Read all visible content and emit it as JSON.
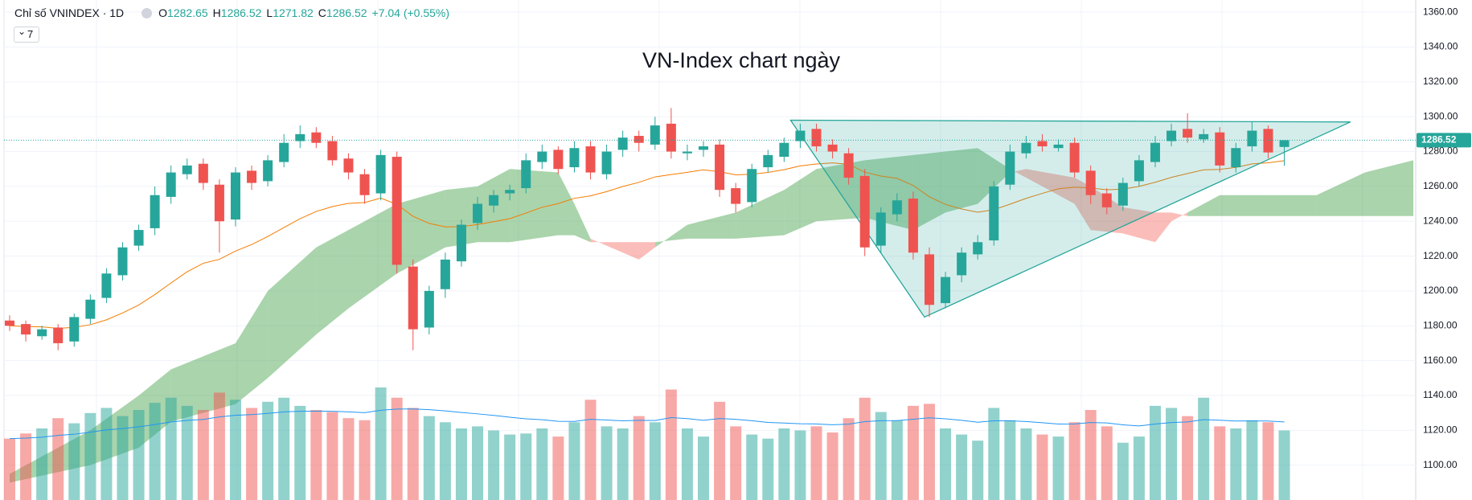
{
  "header": {
    "symbol": "Chỉ số VNINDEX · 1D",
    "menu": "7",
    "open_label": "O",
    "open": 1282.65,
    "high_label": "H",
    "high": 1286.52,
    "low_label": "L",
    "low": 1271.82,
    "close_label": "C",
    "close": 1286.52,
    "change": "+7.04 (+0.55%)"
  },
  "chart_data": {
    "type": "candlestick",
    "title": "VN-Index chart ngày",
    "up_color": "#26a69a",
    "down_color": "#ef5350",
    "open": [
      1183,
      1181,
      1174,
      1179,
      1171,
      1184,
      1196,
      1209,
      1226,
      1236,
      1254,
      1267,
      1273,
      1261,
      1241,
      1269,
      1263,
      1274,
      1286,
      1291,
      1286,
      1276,
      1267,
      1256,
      1277,
      1214,
      1179,
      1201,
      1217,
      1239,
      1249,
      1256,
      1259,
      1274,
      1281,
      1271,
      1283,
      1267,
      1281,
      1289,
      1284,
      1296,
      1279,
      1281,
      1284,
      1259,
      1251,
      1271,
      1277,
      1286,
      1293,
      1284,
      1279,
      1266,
      1226,
      1244,
      1253,
      1221,
      1193,
      1209,
      1221,
      1229,
      1261,
      1279,
      1286,
      1282,
      1285,
      1269,
      1256,
      1249,
      1263,
      1274,
      1286,
      1293,
      1287,
      1291,
      1271,
      1283,
      1293,
      1282.65
    ],
    "high": [
      1186,
      1183,
      1180,
      1181,
      1187,
      1198,
      1213,
      1228,
      1238,
      1260,
      1272,
      1276,
      1276,
      1264,
      1271,
      1272,
      1278,
      1290,
      1295,
      1294,
      1289,
      1279,
      1270,
      1281,
      1280,
      1218,
      1203,
      1222,
      1241,
      1254,
      1258,
      1261,
      1279,
      1284,
      1283,
      1286,
      1286,
      1284,
      1292,
      1292,
      1300,
      1305,
      1284,
      1286,
      1287,
      1262,
      1273,
      1281,
      1288,
      1296,
      1296,
      1287,
      1282,
      1270,
      1248,
      1256,
      1257,
      1225,
      1211,
      1225,
      1232,
      1263,
      1284,
      1289,
      1290,
      1287,
      1288,
      1272,
      1259,
      1265,
      1278,
      1289,
      1296,
      1302,
      1293,
      1294,
      1285,
      1297,
      1295,
      1286.52
    ],
    "low": [
      1177,
      1171,
      1172,
      1166,
      1168,
      1181,
      1193,
      1206,
      1223,
      1232,
      1250,
      1264,
      1258,
      1222,
      1237,
      1258,
      1260,
      1271,
      1282,
      1282,
      1272,
      1264,
      1250,
      1252,
      1210,
      1166,
      1175,
      1196,
      1214,
      1235,
      1245,
      1252,
      1256,
      1270,
      1267,
      1268,
      1264,
      1264,
      1277,
      1280,
      1281,
      1276,
      1275,
      1277,
      1254,
      1245,
      1248,
      1268,
      1274,
      1282,
      1280,
      1276,
      1261,
      1220,
      1222,
      1240,
      1218,
      1185,
      1190,
      1205,
      1218,
      1226,
      1258,
      1276,
      1280,
      1280,
      1265,
      1250,
      1244,
      1246,
      1260,
      1271,
      1283,
      1285,
      1285,
      1268,
      1268,
      1280,
      1276,
      1271.82
    ],
    "close": [
      1180,
      1175,
      1178,
      1170,
      1185,
      1195,
      1210,
      1225,
      1235,
      1255,
      1268,
      1272,
      1262,
      1240,
      1268,
      1262,
      1275,
      1285,
      1290,
      1285,
      1275,
      1268,
      1255,
      1278,
      1215,
      1178,
      1200,
      1218,
      1238,
      1250,
      1255,
      1258,
      1275,
      1280,
      1270,
      1282,
      1268,
      1280,
      1288,
      1285,
      1295,
      1280,
      1280,
      1283,
      1258,
      1250,
      1270,
      1278,
      1285,
      1292,
      1283,
      1280,
      1265,
      1225,
      1245,
      1252,
      1222,
      1192,
      1208,
      1222,
      1228,
      1260,
      1280,
      1285,
      1283,
      1284,
      1268,
      1255,
      1248,
      1262,
      1275,
      1285,
      1292,
      1288,
      1290,
      1272,
      1282,
      1292,
      1279.48,
      1286.52
    ],
    "volume": [
      600,
      650,
      700,
      800,
      750,
      850,
      900,
      820,
      880,
      950,
      1000,
      920,
      880,
      1050,
      980,
      900,
      960,
      1000,
      920,
      880,
      860,
      800,
      780,
      1100,
      1000,
      900,
      820,
      760,
      700,
      720,
      680,
      640,
      650,
      700,
      620,
      760,
      980,
      720,
      700,
      820,
      760,
      1080,
      700,
      620,
      960,
      720,
      640,
      600,
      700,
      680,
      720,
      660,
      800,
      1000,
      860,
      780,
      920,
      940,
      700,
      640,
      580,
      900,
      780,
      700,
      640,
      620,
      760,
      880,
      720,
      560,
      620,
      920,
      900,
      820,
      1000,
      720,
      700,
      780,
      760,
      680
    ],
    "cloud": {
      "x": [
        0,
        5,
        8,
        10,
        14,
        16,
        19,
        21,
        24,
        27,
        29,
        31,
        34,
        35,
        36,
        38,
        39,
        40,
        42,
        45,
        48,
        50,
        53,
        56,
        58,
        60,
        62,
        63,
        66,
        67,
        69,
        71,
        72,
        73,
        75,
        78,
        81,
        84,
        87
      ],
      "span_a": [
        1095,
        1120,
        1140,
        1155,
        1170,
        1200,
        1225,
        1235,
        1250,
        1258,
        1260,
        1270,
        1268,
        1250,
        1230,
        1222,
        1218,
        1225,
        1238,
        1245,
        1258,
        1270,
        1275,
        1278,
        1280,
        1282,
        1270,
        1265,
        1250,
        1235,
        1233,
        1228,
        1240,
        1245,
        1255,
        1255,
        1255,
        1268,
        1275
      ],
      "span_b": [
        1090,
        1100,
        1110,
        1125,
        1135,
        1150,
        1175,
        1190,
        1210,
        1225,
        1228,
        1228,
        1232,
        1232,
        1228,
        1228,
        1228,
        1228,
        1230,
        1230,
        1232,
        1240,
        1242,
        1235,
        1245,
        1250,
        1268,
        1270,
        1265,
        1260,
        1248,
        1245,
        1245,
        1243,
        1243,
        1243,
        1243,
        1243,
        1243
      ]
    },
    "triangle": {
      "x": [
        48.4,
        56.7,
        83.1
      ],
      "y": [
        1298,
        1185,
        1297
      ]
    },
    "ylim": [
      1080,
      1367
    ],
    "yticks": [
      {
        "value": 1100,
        "label": "1100.00"
      },
      {
        "value": 1120,
        "label": "1120.00"
      },
      {
        "value": 1140,
        "label": "1140.00"
      },
      {
        "value": 1160,
        "label": "1160.00"
      },
      {
        "value": 1180,
        "label": "1180.00"
      },
      {
        "value": 1200,
        "label": "1200.00"
      },
      {
        "value": 1220,
        "label": "1220.00"
      },
      {
        "value": 1240,
        "label": "1240.00"
      },
      {
        "value": 1260,
        "label": "1260.00"
      },
      {
        "value": 1280,
        "label": "1280.00"
      },
      {
        "value": 1300,
        "label": "1300.00"
      },
      {
        "value": 1320,
        "label": "1320.00"
      },
      {
        "value": 1340,
        "label": "1340.00"
      },
      {
        "value": 1360,
        "label": "1360.00"
      }
    ],
    "grid": true
  }
}
